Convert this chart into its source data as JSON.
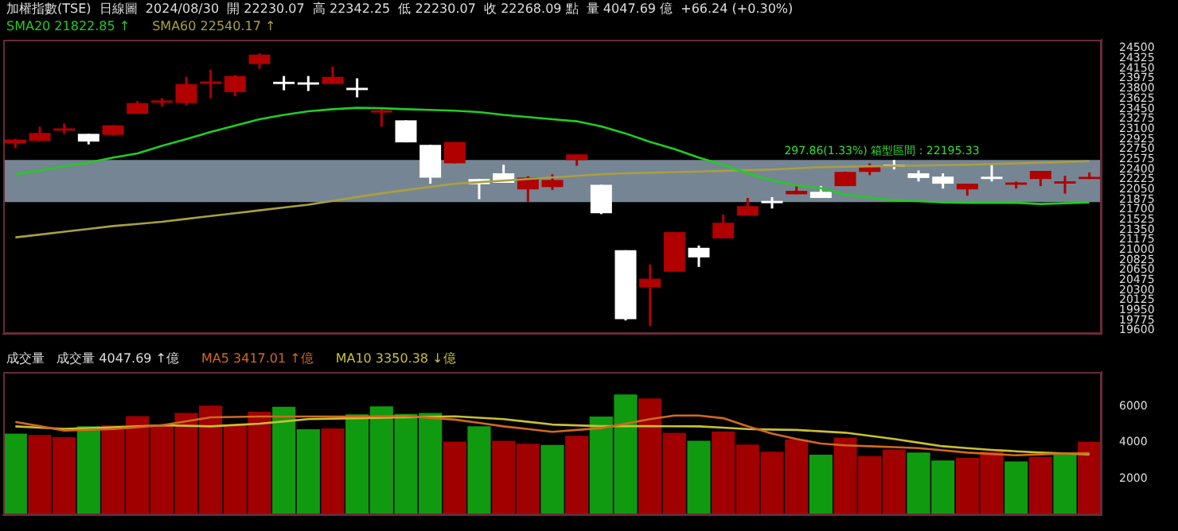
{
  "chart_data": [
    {
      "type": "candlestick",
      "title": "加權指數(TSE)  日線圖  2024/08/30  開 22230.07  高 22342.25  低 22230.07  收 22268.09 點  量 4047.69 億  +66.24 (+0.30%)",
      "categories": [
        null,
        null,
        null,
        null,
        null,
        null,
        null,
        null,
        null,
        null,
        null,
        null,
        null,
        null,
        null,
        null,
        null,
        null,
        null,
        null,
        null,
        null,
        null,
        null,
        null,
        null,
        null,
        null,
        null,
        null,
        null,
        null,
        null,
        null,
        null,
        null,
        null,
        null,
        null,
        null,
        null,
        null,
        null,
        null,
        null
      ],
      "ohlc": [
        [
          22849,
          22931,
          22767,
          22916
        ],
        [
          22891,
          23139,
          22891,
          23030
        ],
        [
          23070,
          23196,
          23015,
          23110
        ],
        [
          23015,
          23015,
          22832,
          22881
        ],
        [
          22998,
          23164,
          22990,
          23164
        ],
        [
          23362,
          23584,
          23362,
          23550
        ],
        [
          23555,
          23634,
          23493,
          23595
        ],
        [
          23550,
          24005,
          23510,
          23881
        ],
        [
          23885,
          24129,
          23634,
          23925
        ],
        [
          23740,
          24037,
          23667,
          24020
        ],
        [
          24228,
          24416,
          24144,
          24391
        ],
        [
          23920,
          24020,
          23772,
          23880
        ],
        [
          23910,
          24020,
          23760,
          23870
        ],
        [
          23881,
          24186,
          23881,
          24005
        ],
        [
          23815,
          23980,
          23649,
          23775
        ],
        [
          23385,
          23450,
          23139,
          23425
        ],
        [
          23250,
          23250,
          22867,
          22867
        ],
        [
          22824,
          22824,
          22149,
          22255
        ],
        [
          22503,
          22874,
          22503,
          22874
        ],
        [
          22230,
          22230,
          21880,
          22140
        ],
        [
          22330,
          22478,
          22164,
          22164
        ],
        [
          22050,
          22280,
          21835,
          22255
        ],
        [
          22090,
          22312,
          22040,
          22213
        ],
        [
          22560,
          22659,
          22461,
          22659
        ],
        [
          22131,
          22131,
          21620,
          21636
        ],
        [
          20993,
          20993,
          19773,
          19797
        ],
        [
          20349,
          20745,
          19674,
          20498
        ],
        [
          20622,
          21307,
          20622,
          21307
        ],
        [
          21035,
          21075,
          20703,
          20869
        ],
        [
          21199,
          21612,
          21199,
          21470
        ],
        [
          21594,
          21901,
          21594,
          21760
        ],
        [
          21850,
          21916,
          21718,
          21810
        ],
        [
          21965,
          22107,
          21965,
          22025
        ],
        [
          22008,
          22107,
          21901,
          21901
        ],
        [
          22107,
          22360,
          22107,
          22354
        ],
        [
          22354,
          22503,
          22297,
          22436
        ],
        [
          22480,
          22560,
          22396,
          22440
        ],
        [
          22330,
          22379,
          22188,
          22248
        ],
        [
          22272,
          22330,
          22065,
          22149
        ],
        [
          22050,
          22149,
          21941,
          22149
        ],
        [
          22270,
          22478,
          22188,
          22230
        ],
        [
          22130,
          22188,
          22065,
          22170
        ],
        [
          22230,
          22371,
          22107,
          22371
        ],
        [
          22150,
          22288,
          21975,
          22190
        ],
        [
          22230.07,
          22342.25,
          22230.07,
          22268.09
        ]
      ],
      "colors": [
        "#b00000",
        "#b00000",
        "#b00000",
        "#ffffff",
        "#b00000",
        "#b00000",
        "#b00000",
        "#b00000",
        "#b00000",
        "#b00000",
        "#b00000",
        "#ffffff",
        "#ffffff",
        "#b00000",
        "#ffffff",
        "#b00000",
        "#ffffff",
        "#ffffff",
        "#b00000",
        "#ffffff",
        "#ffffff",
        "#b00000",
        "#b00000",
        "#b00000",
        "#ffffff",
        "#ffffff",
        "#b00000",
        "#b00000",
        "#ffffff",
        "#b00000",
        "#b00000",
        "#ffffff",
        "#b00000",
        "#ffffff",
        "#b00000",
        "#b00000",
        "#ffffff",
        "#ffffff",
        "#ffffff",
        "#b00000",
        "#ffffff",
        "#b00000",
        "#b00000",
        "#b00000",
        "#b00000"
      ],
      "series": [
        {
          "name": "SMA20 21822.85 ↑",
          "type": "line",
          "color": "#22cc22",
          "values": [
            22312,
            22379,
            22453,
            22515,
            22602,
            22676,
            22807,
            22923,
            23047,
            23159,
            23270,
            23344,
            23406,
            23443,
            23468,
            23460,
            23443,
            23431,
            23418,
            23394,
            23344,
            23307,
            23270,
            23233,
            23146,
            23022,
            22874,
            22750,
            22602,
            22478,
            22329,
            22206,
            22119,
            22070,
            21958,
            21909,
            21859,
            21847,
            21822,
            21817,
            21817,
            21817,
            21797,
            21810,
            21823
          ]
        },
        {
          "name": "SMA60 22540.17 ↑",
          "type": "line",
          "color": "#a8a040",
          "values": [
            21216,
            21265,
            21315,
            21364,
            21413,
            21450,
            21488,
            21537,
            21587,
            21636,
            21686,
            21735,
            21785,
            21851,
            21917,
            21983,
            22038,
            22094,
            22149,
            22176,
            22203,
            22230,
            22258,
            22285,
            22312,
            22330,
            22340,
            22350,
            22360,
            22372,
            22384,
            22396,
            22416,
            22436,
            22443,
            22450,
            22457,
            22464,
            22471,
            22478,
            22490,
            22503,
            22515,
            22528,
            22540
          ]
        }
      ],
      "bands": [
        {
          "axis": "y",
          "from": 21830,
          "to": 22560,
          "label": "297.86(1.33%) 箱型區間 : 22195.33",
          "color": "#8393a3"
        }
      ],
      "ylim": [
        19540,
        24650
      ],
      "yticks": [
        19600,
        19775,
        19950,
        20125,
        20300,
        20475,
        20650,
        20825,
        21000,
        21175,
        21350,
        21525,
        21700,
        21875,
        22050,
        22225,
        22400,
        22575,
        22750,
        22925,
        23100,
        23275,
        23450,
        23625,
        23800,
        23975,
        24150,
        24325,
        24500
      ],
      "tick_labels": "y",
      "legend": "top left"
    },
    {
      "type": "bar",
      "title": "成交量   成交量 4047.69 ↑億",
      "categories": [
        null,
        null,
        null,
        null,
        null,
        null,
        null,
        null,
        null,
        null,
        null,
        null,
        null,
        null,
        null,
        null,
        null,
        null,
        null,
        null,
        null,
        null,
        null,
        null,
        null,
        null,
        null,
        null,
        null,
        null,
        null,
        null,
        null,
        null,
        null,
        null,
        null,
        null,
        null,
        null,
        null,
        null,
        null,
        null,
        null
      ],
      "series": [
        {
          "values": [
            4495,
            4422,
            4305,
            4909,
            4960,
            5469,
            4960,
            5636,
            6051,
            4960,
            5709,
            5978,
            4742,
            4785,
            5564,
            6000,
            5585,
            5636,
            4058,
            4909,
            4109,
            3942,
            3869,
            4378,
            5440,
            6655,
            6436,
            4545,
            4109,
            4618,
            3891,
            3505,
            4182,
            3331,
            4276,
            3258,
            3622,
            3455,
            3018,
            3164,
            3505,
            2967,
            3215,
            3455,
            4047.69
          ],
          "colors": [
            "#109a10",
            "#a00000",
            "#a00000",
            "#109a10",
            "#a00000",
            "#a00000",
            "#a00000",
            "#a00000",
            "#a00000",
            "#a00000",
            "#a00000",
            "#109a10",
            "#109a10",
            "#a00000",
            "#109a10",
            "#109a10",
            "#109a10",
            "#109a10",
            "#a00000",
            "#109a10",
            "#a00000",
            "#a00000",
            "#109a10",
            "#a00000",
            "#109a10",
            "#109a10",
            "#a00000",
            "#a00000",
            "#109a10",
            "#a00000",
            "#a00000",
            "#a00000",
            "#a00000",
            "#109a10",
            "#a00000",
            "#a00000",
            "#a00000",
            "#109a10",
            "#109a10",
            "#a00000",
            "#a00000",
            "#109a10",
            "#a00000",
            "#109a10",
            "#a00000"
          ]
        },
        {
          "name": "MA5 3417.01 ↑億",
          "type": "line",
          "color": "#d2691e",
          "values": [
            5149,
            4909,
            4669,
            4710,
            4750,
            4855,
            4960,
            5180,
            5400,
            5420,
            5440,
            5440,
            5440,
            5440,
            5440,
            5455,
            5469,
            5370,
            5273,
            5090,
            4900,
            4750,
            4600,
            4700,
            4800,
            5050,
            5300,
            5500,
            5500,
            5350,
            4900,
            4500,
            4200,
            3950,
            3850,
            3800,
            3750,
            3700,
            3575,
            3450,
            3375,
            3300,
            3350,
            3400,
            3417
          ]
        },
        {
          "name": "MA10 3350.38 ↓億",
          "type": "line",
          "color": "#c8c032",
          "values": [
            4900,
            4830,
            4760,
            4805,
            4850,
            4905,
            4960,
            4930,
            4900,
            4975,
            5050,
            5175,
            5300,
            5325,
            5350,
            5375,
            5400,
            5425,
            5450,
            5375,
            5300,
            5150,
            5000,
            4955,
            4909,
            4909,
            4909,
            4905,
            4900,
            4825,
            4750,
            4725,
            4700,
            4625,
            4550,
            4375,
            4200,
            4000,
            3800,
            3700,
            3600,
            3525,
            3450,
            3400,
            3350
          ]
        }
      ],
      "ylim": [
        0,
        7900
      ],
      "yticks": [
        2000,
        4000,
        6000
      ],
      "tick_labels": "y",
      "legend": "top left"
    }
  ]
}
